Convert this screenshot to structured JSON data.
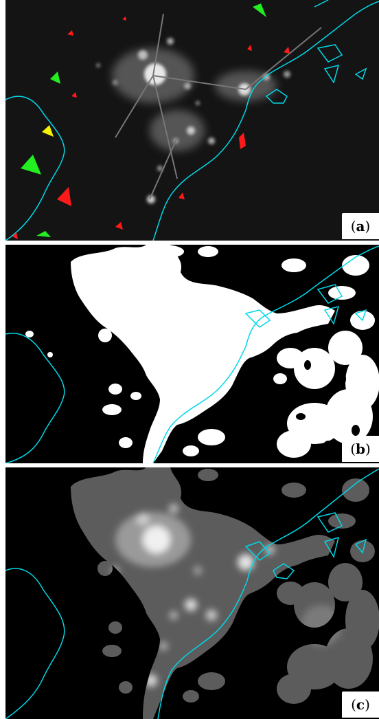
{
  "panels": [
    {
      "id": "a",
      "label_open": "(",
      "label_letter": "a",
      "label_close": ")",
      "background": "#141414"
    },
    {
      "id": "b",
      "label_open": "(",
      "label_letter": "b",
      "label_close": ")",
      "background": "#000000"
    },
    {
      "id": "c",
      "label_open": "(",
      "label_letter": "c",
      "label_close": ")",
      "background": "#000000"
    }
  ],
  "colors": {
    "coastline": "#00d8e8",
    "marker_red": "#ff1a1a",
    "marker_green": "#22ee22",
    "marker_yellow": "#f5f500",
    "mask_white": "#ffffff",
    "light_gray": "#8a8a8a"
  }
}
